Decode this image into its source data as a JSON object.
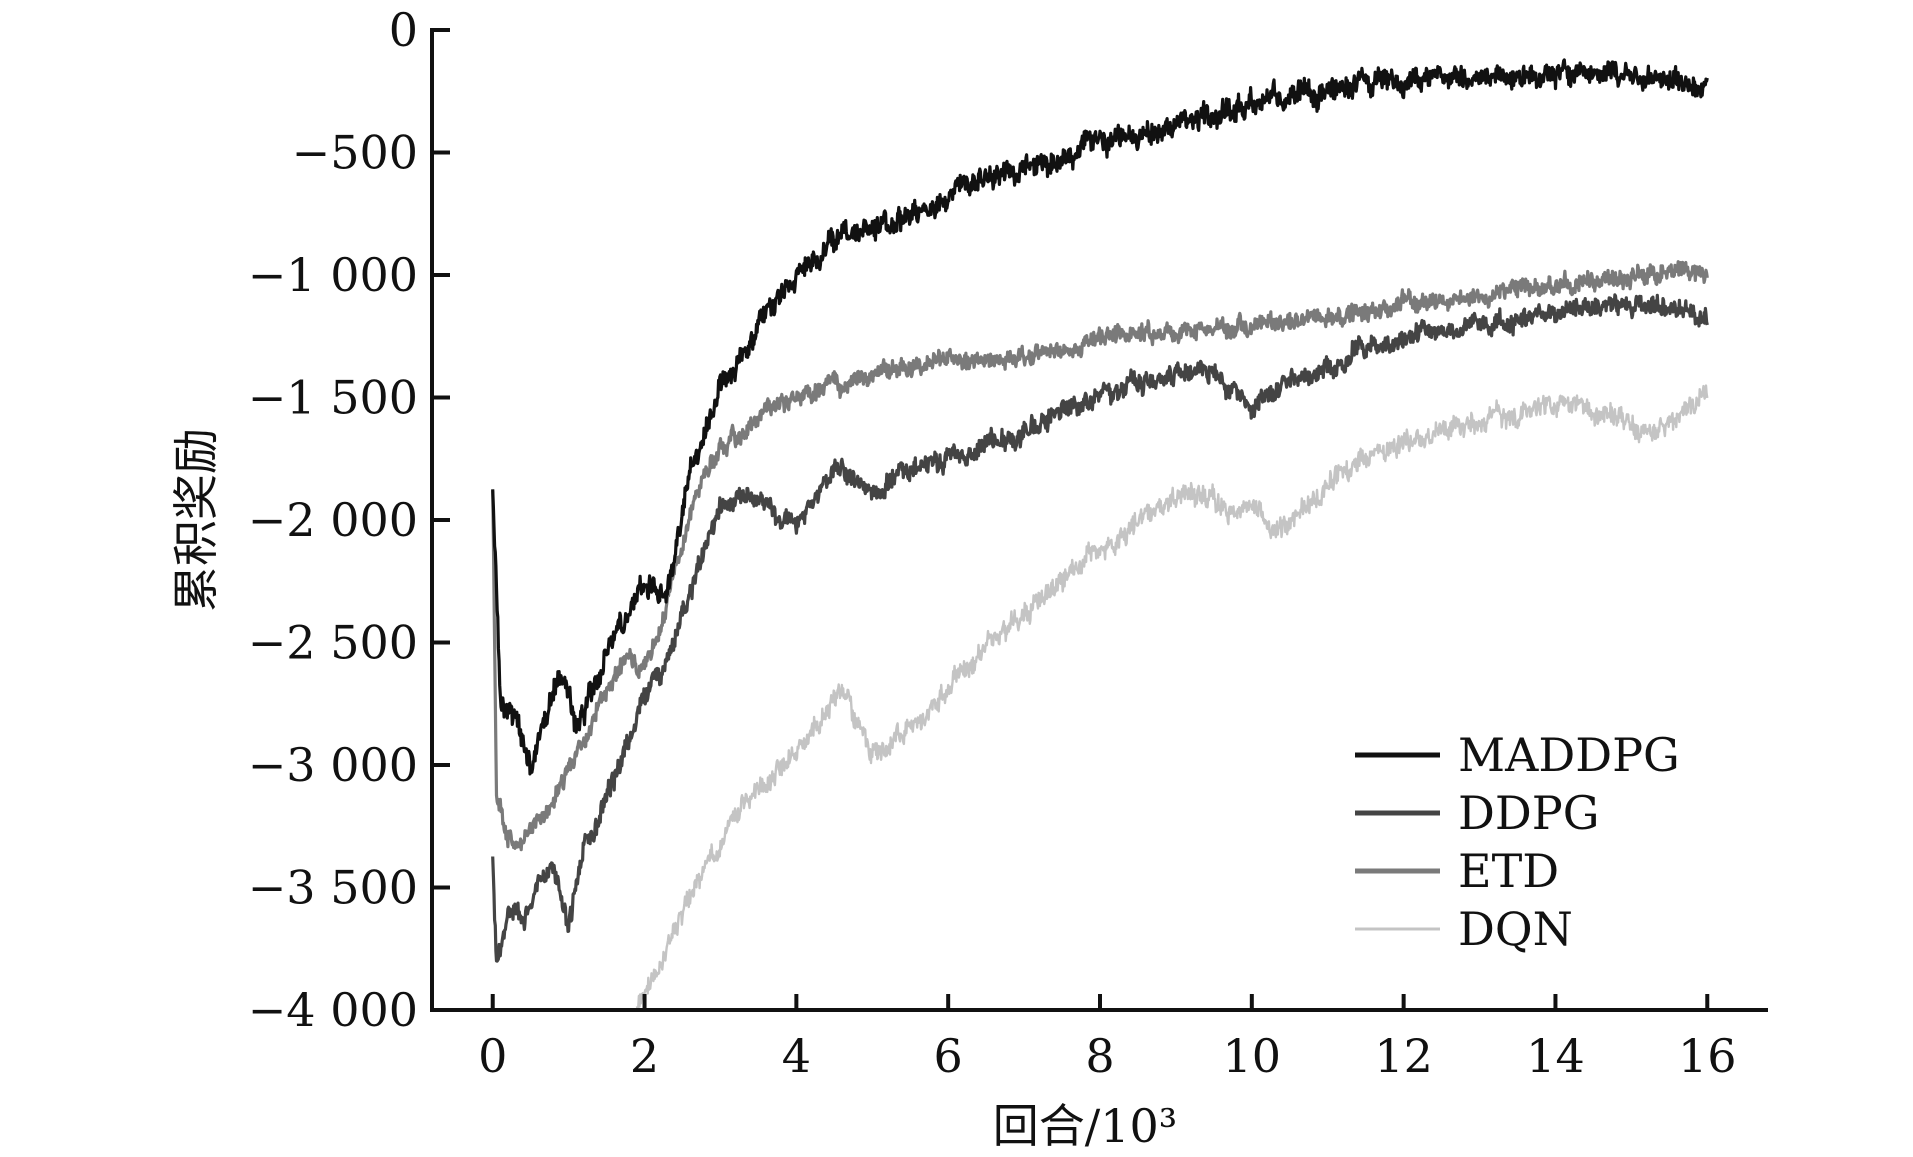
{
  "chart_data": {
    "type": "line",
    "xlabel": "回合/10³",
    "ylabel": "累积奖励",
    "xlim": [
      -0.8,
      16.8
    ],
    "ylim": [
      -4000,
      0
    ],
    "xticks": [
      0,
      2,
      4,
      6,
      8,
      10,
      12,
      14,
      16
    ],
    "xtick_labels": [
      "0",
      "2",
      "4",
      "6",
      "8",
      "10",
      "12",
      "14",
      "16"
    ],
    "yticks": [
      0,
      -500,
      -1000,
      -1500,
      -2000,
      -2500,
      -3000,
      -3500,
      -4000
    ],
    "ytick_labels": [
      "0",
      "−500",
      "−1 000",
      "−1 500",
      "−2 000",
      "−2 500",
      "−3 000",
      "−3 500",
      "−4 000"
    ],
    "grid": false,
    "legend_position": "bottom-right",
    "series": [
      {
        "name": "MADDPG",
        "color": "#111111",
        "x": [
          0,
          0.1,
          0.3,
          0.5,
          0.7,
          0.9,
          1.1,
          1.3,
          1.5,
          1.7,
          2.0,
          2.3,
          2.5,
          2.6,
          2.8,
          3.0,
          3.3,
          3.6,
          4.0,
          4.5,
          5.0,
          5.5,
          6.0,
          6.5,
          7.0,
          7.5,
          8.0,
          8.5,
          9.0,
          9.5,
          10.0,
          10.5,
          11.0,
          11.5,
          12.0,
          12.5,
          13.0,
          13.5,
          14.0,
          14.5,
          15.0,
          15.5,
          16.0
        ],
        "y": [
          -1870,
          -2750,
          -2800,
          -3000,
          -2800,
          -2600,
          -2850,
          -2700,
          -2550,
          -2400,
          -2250,
          -2300,
          -2000,
          -1800,
          -1650,
          -1450,
          -1300,
          -1150,
          -1000,
          -850,
          -800,
          -750,
          -680,
          -620,
          -560,
          -520,
          -470,
          -420,
          -380,
          -340,
          -290,
          -270,
          -240,
          -220,
          -210,
          -200,
          -200,
          -190,
          -200,
          -190,
          -200,
          -200,
          -210
        ]
      },
      {
        "name": "DDPG",
        "color": "#444444",
        "x": [
          0,
          0.05,
          0.2,
          0.4,
          0.6,
          0.8,
          1.0,
          1.2,
          1.5,
          1.8,
          2.0,
          2.2,
          2.4,
          2.6,
          2.8,
          3.0,
          3.3,
          3.6,
          4.0,
          4.3,
          4.6,
          4.9,
          5.2,
          5.5,
          6.0,
          6.5,
          7.0,
          7.5,
          8.0,
          8.5,
          9.0,
          9.5,
          10.0,
          10.5,
          11.0,
          11.5,
          12.0,
          12.5,
          13.0,
          13.5,
          14.0,
          14.5,
          15.0,
          15.5,
          16.0
        ],
        "y": [
          -3400,
          -3800,
          -3600,
          -3650,
          -3500,
          -3400,
          -3650,
          -3350,
          -3150,
          -2900,
          -2750,
          -2650,
          -2500,
          -2300,
          -2100,
          -1950,
          -1900,
          -1950,
          -2050,
          -1850,
          -1800,
          -1900,
          -1850,
          -1800,
          -1750,
          -1700,
          -1650,
          -1550,
          -1500,
          -1450,
          -1400,
          -1400,
          -1550,
          -1450,
          -1380,
          -1300,
          -1250,
          -1230,
          -1200,
          -1180,
          -1150,
          -1130,
          -1130,
          -1120,
          -1200
        ]
      },
      {
        "name": "ETD",
        "color": "#7a7a7a",
        "x": [
          0,
          0.05,
          0.2,
          0.4,
          0.6,
          0.8,
          1.0,
          1.2,
          1.5,
          1.8,
          2.0,
          2.2,
          2.4,
          2.6,
          2.8,
          3.0,
          3.3,
          3.6,
          4.0,
          4.5,
          5.0,
          5.5,
          6.0,
          6.5,
          7.0,
          7.5,
          8.0,
          8.5,
          9.0,
          9.5,
          10.0,
          10.5,
          11.0,
          11.5,
          12.0,
          12.5,
          13.0,
          13.5,
          14.0,
          14.5,
          15.0,
          15.5,
          16.0
        ],
        "y": [
          -1900,
          -3100,
          -3300,
          -3300,
          -3200,
          -3150,
          -3000,
          -2900,
          -2700,
          -2550,
          -2600,
          -2450,
          -2200,
          -2000,
          -1800,
          -1700,
          -1650,
          -1550,
          -1500,
          -1450,
          -1420,
          -1380,
          -1350,
          -1350,
          -1330,
          -1300,
          -1270,
          -1250,
          -1230,
          -1220,
          -1210,
          -1200,
          -1180,
          -1150,
          -1120,
          -1100,
          -1080,
          -1060,
          -1040,
          -1020,
          -1000,
          -980,
          -1000
        ]
      },
      {
        "name": "DQN",
        "color": "#c4c4c4",
        "x": [
          1.9,
          2.2,
          2.5,
          2.8,
          3.1,
          3.4,
          3.7,
          4.0,
          4.3,
          4.6,
          4.9,
          5.2,
          5.5,
          5.8,
          6.1,
          6.4,
          6.7,
          7.0,
          7.3,
          7.6,
          7.9,
          8.2,
          8.5,
          8.8,
          9.1,
          9.4,
          9.7,
          10.0,
          10.3,
          10.6,
          10.9,
          11.2,
          11.5,
          11.8,
          12.1,
          12.4,
          12.7,
          13.0,
          13.3,
          13.6,
          13.9,
          14.2,
          14.5,
          14.8,
          15.1,
          15.4,
          15.7,
          16.0
        ],
        "y": [
          -4000,
          -3800,
          -3600,
          -3400,
          -3250,
          -3150,
          -3050,
          -2950,
          -2850,
          -2700,
          -2900,
          -2950,
          -2850,
          -2750,
          -2650,
          -2550,
          -2450,
          -2400,
          -2300,
          -2200,
          -2150,
          -2100,
          -2000,
          -1950,
          -1900,
          -1900,
          -1950,
          -1950,
          -2050,
          -1950,
          -1900,
          -1800,
          -1750,
          -1700,
          -1680,
          -1650,
          -1620,
          -1600,
          -1580,
          -1560,
          -1550,
          -1540,
          -1560,
          -1550,
          -1650,
          -1600,
          -1560,
          -1480
        ]
      }
    ]
  }
}
